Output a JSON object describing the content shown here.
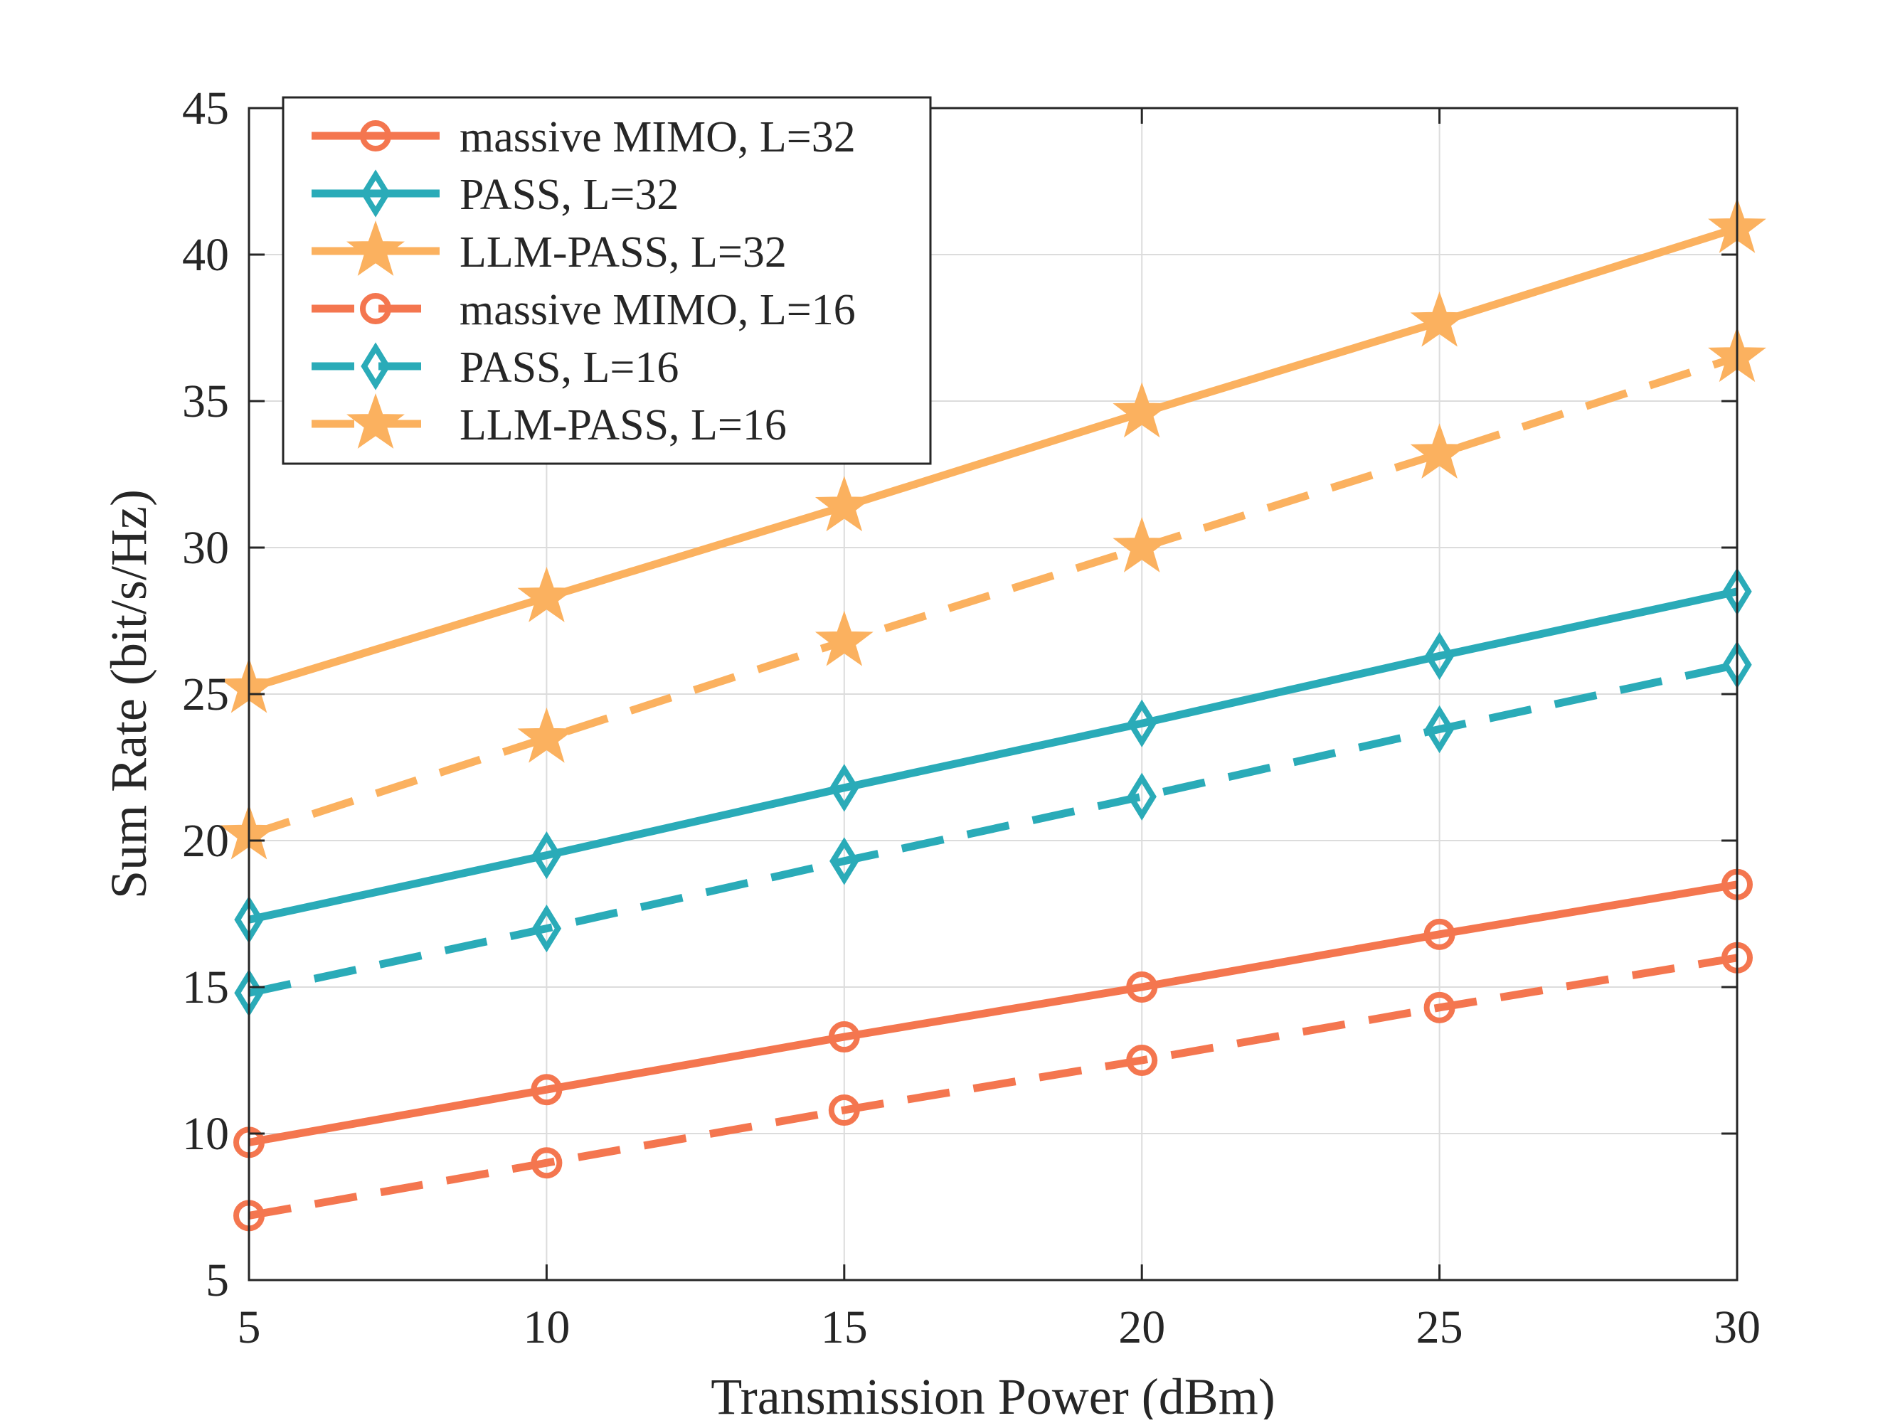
{
  "chart_data": {
    "type": "line",
    "title": "",
    "xlabel": "Transmission Power (dBm)",
    "ylabel": "Sum Rate (bit/s/Hz)",
    "x": [
      5,
      10,
      15,
      20,
      25,
      30
    ],
    "xlim": [
      5,
      30
    ],
    "ylim": [
      5,
      45
    ],
    "xticks": [
      5,
      10,
      15,
      20,
      25,
      30
    ],
    "yticks": [
      5,
      10,
      15,
      20,
      25,
      30,
      35,
      40,
      45
    ],
    "grid": true,
    "legend_position": "top-left",
    "series": [
      {
        "name": "massive MIMO, L=32",
        "color": "#f4764f",
        "line_style": "solid",
        "marker": "circle",
        "values": [
          9.7,
          11.5,
          13.3,
          15.0,
          16.8,
          18.5
        ]
      },
      {
        "name": "PASS, L=32",
        "color": "#2aabb8",
        "line_style": "solid",
        "marker": "diamond",
        "values": [
          17.3,
          19.5,
          21.8,
          24.0,
          26.3,
          28.5
        ]
      },
      {
        "name": "LLM-PASS, L=32",
        "color": "#fbb15f",
        "line_style": "solid",
        "marker": "star",
        "values": [
          25.2,
          28.3,
          31.4,
          34.6,
          37.7,
          40.9
        ]
      },
      {
        "name": "massive MIMO, L=16",
        "color": "#f4764f",
        "line_style": "dashed",
        "marker": "circle",
        "values": [
          7.2,
          9.0,
          10.8,
          12.5,
          14.3,
          16.0
        ]
      },
      {
        "name": "PASS, L=16",
        "color": "#2aabb8",
        "line_style": "dashed",
        "marker": "diamond",
        "values": [
          14.8,
          17.0,
          19.3,
          21.5,
          23.8,
          26.0
        ]
      },
      {
        "name": "LLM-PASS, L=16",
        "color": "#fbb15f",
        "line_style": "dashed",
        "marker": "star",
        "values": [
          20.2,
          23.5,
          26.8,
          30.0,
          33.2,
          36.5
        ]
      }
    ]
  }
}
